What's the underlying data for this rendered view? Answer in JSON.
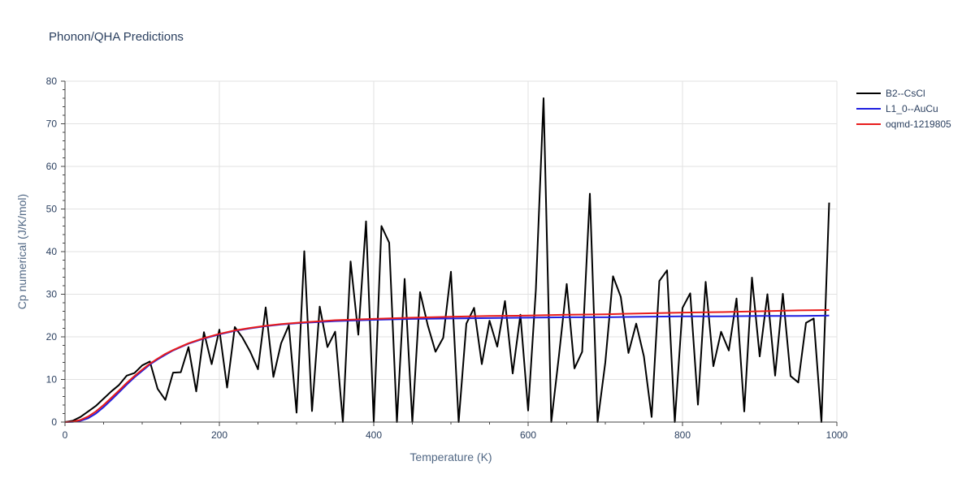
{
  "chart_data": {
    "type": "line",
    "title": "Phonon/QHA Predictions",
    "xlabel": "Temperature (K)",
    "ylabel": "Cp numerical (J/K/mol)",
    "xlim": [
      0,
      1000
    ],
    "ylim": [
      0,
      80
    ],
    "xticks": [
      0,
      200,
      400,
      600,
      800,
      1000
    ],
    "yticks": [
      0,
      10,
      20,
      30,
      40,
      50,
      60,
      70,
      80
    ],
    "grid": true,
    "legend_position": "top-right",
    "series": [
      {
        "name": "B2--CsCl",
        "color": "#000000",
        "x": [
          0,
          10,
          20,
          30,
          40,
          50,
          60,
          70,
          80,
          90,
          100,
          110,
          120,
          130,
          140,
          150,
          160,
          170,
          180,
          190,
          200,
          210,
          220,
          230,
          240,
          250,
          260,
          270,
          280,
          290,
          300,
          310,
          320,
          330,
          340,
          350,
          360,
          370,
          380,
          390,
          400,
          410,
          420,
          430,
          440,
          450,
          460,
          470,
          480,
          490,
          500,
          510,
          520,
          530,
          540,
          550,
          560,
          570,
          580,
          590,
          600,
          610,
          620,
          630,
          640,
          650,
          660,
          670,
          680,
          690,
          700,
          710,
          720,
          730,
          740,
          750,
          760,
          770,
          780,
          790,
          800,
          810,
          820,
          830,
          840,
          850,
          860,
          870,
          880,
          890,
          900,
          910,
          920,
          930,
          940,
          950,
          960,
          970,
          980,
          990
        ],
        "y": [
          0,
          0.3,
          1.2,
          2.5,
          3.8,
          5.5,
          7.2,
          8.7,
          10.9,
          11.5,
          13.3,
          14.2,
          7.8,
          5.2,
          11.6,
          11.7,
          17.6,
          7.2,
          21.1,
          13.6,
          21.7,
          8.1,
          22.3,
          19.8,
          16.5,
          12.4,
          26.9,
          10.6,
          18.5,
          22.7,
          2.2,
          40.1,
          2.6,
          27.1,
          17.6,
          21.2,
          0,
          37.7,
          20.5,
          47.1,
          0,
          46.0,
          42.1,
          0,
          33.6,
          0,
          30.5,
          22.7,
          16.5,
          19.8,
          35.3,
          0,
          23.1,
          26.8,
          13.6,
          23.8,
          17.7,
          28.4,
          11.4,
          25.2,
          2.7,
          31.0,
          76.0,
          0,
          15.7,
          32.4,
          12.6,
          16.5,
          53.6,
          0,
          14.0,
          34.2,
          29.4,
          16.2,
          23.1,
          15.4,
          1.2,
          33.1,
          35.6,
          0,
          26.8,
          30.2,
          4.1,
          32.9,
          13.1,
          21.2,
          16.8,
          29.0,
          2.5,
          33.9,
          15.4,
          30.0,
          10.9,
          30.1,
          10.8,
          9.3,
          23.3,
          24.3,
          0,
          51.5
        ]
      },
      {
        "name": "L1_0--AuCu",
        "color": "#1f1fe0",
        "x": [
          0,
          10,
          20,
          30,
          40,
          50,
          60,
          70,
          80,
          90,
          100,
          110,
          120,
          130,
          140,
          150,
          160,
          170,
          180,
          190,
          200,
          220,
          240,
          260,
          280,
          300,
          350,
          400,
          450,
          500,
          550,
          600,
          650,
          700,
          750,
          800,
          850,
          900,
          950,
          990
        ],
        "y": [
          0,
          0.05,
          0.3,
          0.9,
          2.0,
          3.5,
          5.2,
          7.0,
          8.8,
          10.5,
          12.0,
          13.5,
          14.7,
          15.8,
          16.8,
          17.6,
          18.4,
          19.0,
          19.6,
          20.1,
          20.6,
          21.4,
          22.0,
          22.5,
          22.9,
          23.2,
          23.7,
          24.0,
          24.2,
          24.3,
          24.4,
          24.5,
          24.6,
          24.6,
          24.7,
          24.8,
          24.8,
          24.9,
          24.9,
          25.0
        ]
      },
      {
        "name": "oqmd-1219805",
        "color": "#e81c1c",
        "x": [
          0,
          10,
          20,
          30,
          40,
          50,
          60,
          70,
          80,
          90,
          100,
          110,
          120,
          130,
          140,
          150,
          160,
          170,
          180,
          190,
          200,
          220,
          240,
          260,
          280,
          300,
          350,
          400,
          450,
          500,
          550,
          600,
          650,
          700,
          750,
          800,
          850,
          900,
          950,
          990
        ],
        "y": [
          0,
          0.1,
          0.5,
          1.3,
          2.5,
          4.0,
          5.7,
          7.4,
          9.2,
          10.8,
          12.3,
          13.7,
          14.9,
          16.0,
          16.9,
          17.7,
          18.5,
          19.1,
          19.7,
          20.2,
          20.7,
          21.5,
          22.1,
          22.6,
          23.0,
          23.3,
          23.9,
          24.2,
          24.5,
          24.7,
          24.9,
          25.0,
          25.2,
          25.3,
          25.5,
          25.7,
          25.8,
          26.0,
          26.2,
          26.3
        ]
      }
    ]
  }
}
